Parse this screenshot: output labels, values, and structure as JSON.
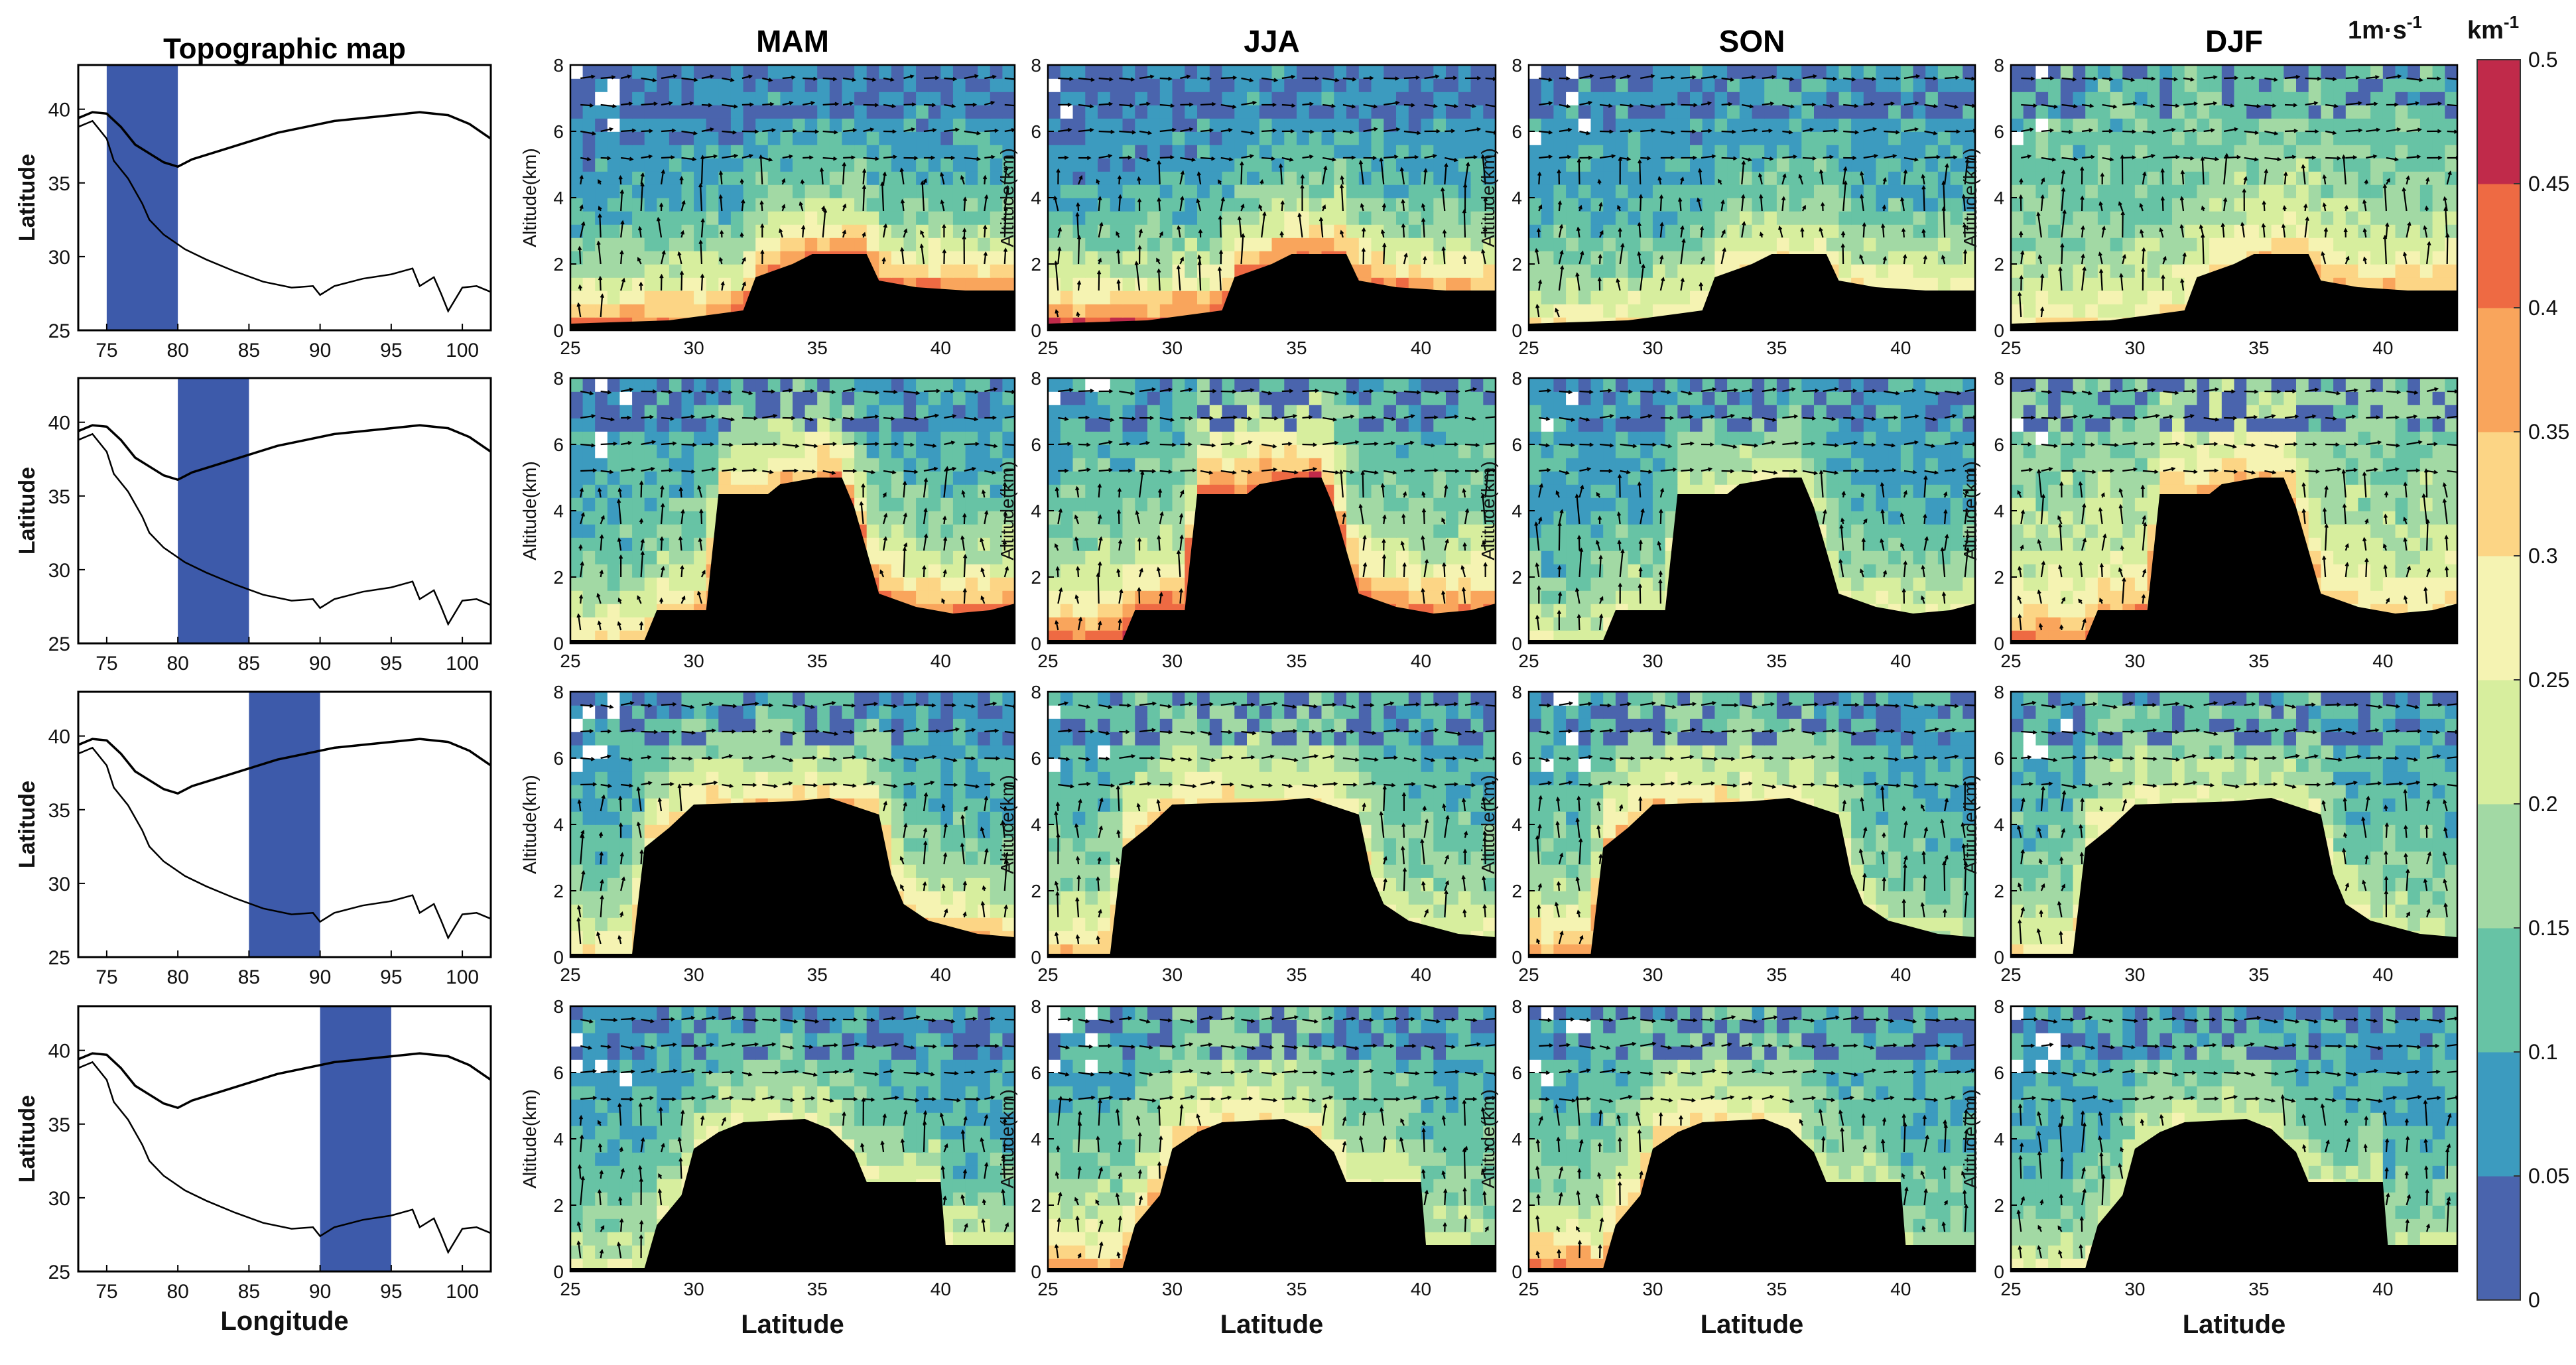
{
  "chart_data": {
    "type": "heatmap",
    "description_rows": "4 longitude bands x 4 seasons vertical cross-sections of extinction coefficient with wind vectors",
    "map_panel": {
      "title": "Topographic map",
      "xlabel": "Longitude",
      "ylabel": "Latitude",
      "xticks": [
        "75",
        "80",
        "85",
        "90",
        "95",
        "100"
      ],
      "yticks": [
        "25",
        "30",
        "35",
        "40"
      ],
      "xlim": [
        73,
        102
      ],
      "ylim": [
        25,
        43
      ],
      "bands": [
        [
          75,
          80
        ],
        [
          80,
          85
        ],
        [
          85,
          90
        ],
        [
          90,
          95
        ]
      ],
      "band_color": "#3d5aaa"
    },
    "seasons": [
      "MAM",
      "JJA",
      "SON",
      "DJF"
    ],
    "section_axes": {
      "xlabel": "Latitude",
      "ylabel": "Altitude(km)",
      "xticks": [
        "25",
        "30",
        "35",
        "40"
      ],
      "yticks": [
        "0",
        "2",
        "4",
        "6",
        "8"
      ],
      "xlim": [
        25,
        43
      ],
      "ylim": [
        0,
        8
      ]
    },
    "terrain_profiles": [
      [
        [
          25,
          0.2
        ],
        [
          29,
          0.3
        ],
        [
          32,
          0.6
        ],
        [
          32.5,
          1.6
        ],
        [
          34,
          2.0
        ],
        [
          34.8,
          2.3
        ],
        [
          37,
          2.3
        ],
        [
          37.5,
          1.5
        ],
        [
          39,
          1.3
        ],
        [
          41,
          1.2
        ],
        [
          43,
          1.2
        ]
      ],
      [
        [
          25,
          0.1
        ],
        [
          28,
          0.1
        ],
        [
          28.5,
          1.0
        ],
        [
          30.5,
          1.0
        ],
        [
          31,
          4.5
        ],
        [
          33,
          4.5
        ],
        [
          33.5,
          4.8
        ],
        [
          35,
          5.0
        ],
        [
          36,
          5.0
        ],
        [
          36.5,
          4.1
        ],
        [
          37.5,
          1.5
        ],
        [
          39,
          1.1
        ],
        [
          40.5,
          0.9
        ],
        [
          42,
          1.0
        ],
        [
          43,
          1.2
        ]
      ],
      [
        [
          25,
          0.1
        ],
        [
          27.5,
          0.1
        ],
        [
          28,
          3.3
        ],
        [
          29,
          3.9
        ],
        [
          30,
          4.6
        ],
        [
          34,
          4.7
        ],
        [
          35.5,
          4.8
        ],
        [
          37.5,
          4.3
        ],
        [
          38,
          2.5
        ],
        [
          38.5,
          1.6
        ],
        [
          39.5,
          1.1
        ],
        [
          40.5,
          0.9
        ],
        [
          41.5,
          0.7
        ],
        [
          43,
          0.6
        ]
      ],
      [
        [
          25,
          0.1
        ],
        [
          28,
          0.1
        ],
        [
          28.5,
          1.4
        ],
        [
          29.5,
          2.3
        ],
        [
          30,
          3.7
        ],
        [
          31,
          4.2
        ],
        [
          32,
          4.5
        ],
        [
          34.5,
          4.6
        ],
        [
          35.5,
          4.3
        ],
        [
          36.5,
          3.6
        ],
        [
          37,
          2.7
        ],
        [
          40,
          2.7
        ],
        [
          40.2,
          0.8
        ],
        [
          43,
          0.8
        ]
      ]
    ],
    "colorbar": {
      "unit": "km",
      "unit_exp": "-1",
      "wind_ref": "1m·s",
      "wind_ref_exp": "-1",
      "levels": [
        0,
        0.05,
        0.1,
        0.15,
        0.2,
        0.25,
        0.3,
        0.35,
        0.4,
        0.45,
        0.5
      ],
      "tick_labels": [
        "0",
        "0.05",
        "0.1",
        "0.15",
        "0.2",
        "0.25",
        "0.3",
        "0.35",
        "0.4",
        "0.45",
        "0.5"
      ],
      "colors": [
        "#4a64ad",
        "#3c9bbf",
        "#67c3a5",
        "#a2d9a4",
        "#d7ee9e",
        "#f5f3b2",
        "#fcd585",
        "#f9a55c",
        "#ee6a43",
        "#c02a4a"
      ]
    },
    "approx_intensity": {
      "note": "representative extinction levels (km^-1) estimated per panel [row][season]",
      "low_level_south": [
        [
          0.4,
          0.45,
          0.3,
          0.28
        ],
        [
          0.3,
          0.45,
          0.25,
          0.4
        ],
        [
          0.3,
          0.35,
          0.4,
          0.3
        ],
        [
          0.25,
          0.4,
          0.42,
          0.25
        ]
      ],
      "low_level_north": [
        [
          0.42,
          0.38,
          0.3,
          0.38
        ],
        [
          0.43,
          0.4,
          0.25,
          0.3
        ],
        [
          0.35,
          0.25,
          0.18,
          0.22
        ],
        [
          0.25,
          0.22,
          0.15,
          0.22
        ]
      ],
      "upper": [
        [
          0.05,
          0.05,
          0.07,
          0.12
        ],
        [
          0.08,
          0.1,
          0.08,
          0.15
        ],
        [
          0.08,
          0.1,
          0.1,
          0.1
        ],
        [
          0.08,
          0.1,
          0.1,
          0.08
        ]
      ]
    }
  }
}
